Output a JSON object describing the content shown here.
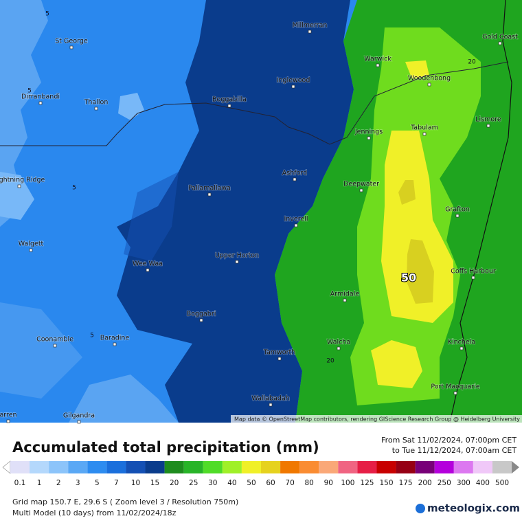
{
  "map": {
    "towns": [
      "Millmerran",
      "St George",
      "Gold Coast",
      "Warwick",
      "Woodenbong",
      "Inglewood",
      "Dirranbandi",
      "Thallon",
      "Boggabilla",
      "Lismore",
      "Jennings",
      "Tabulam",
      "Lightning Ridge",
      "Ashford",
      "Deepwater",
      "Pallamallawa",
      "Grafton",
      "Inverell",
      "Walgett",
      "Upper Horton",
      "Wee Waa",
      "Coffs Harbour",
      "Armidale",
      "Boggabri",
      "Coonamble",
      "Baradine",
      "Walcha",
      "Kinchela",
      "Tamworth",
      "Port Macquarie",
      "Wallabadah",
      "Gilgandra",
      "arren"
    ],
    "contour_labels": [
      "5",
      "5",
      "5",
      "5",
      "20",
      "20",
      "50"
    ],
    "attribution": "Map data © OpenStreetMap contributors, rendering GIScience Research Group @ Heidelberg University"
  },
  "legend": {
    "title": "Accumulated total precipitation (mm)",
    "from": "From Sat 11/02/2024, 07:00pm CET",
    "to": "to Tue 11/12/2024, 07:00am CET",
    "steps": [
      {
        "value": 0.1,
        "color": "#e0e0f8"
      },
      {
        "value": 1,
        "color": "#b4d8fc"
      },
      {
        "value": 2,
        "color": "#8cc4fa"
      },
      {
        "value": 3,
        "color": "#5aa8f5"
      },
      {
        "value": 5,
        "color": "#2d8cf0"
      },
      {
        "value": 7,
        "color": "#1a6fdc"
      },
      {
        "value": 10,
        "color": "#1450b4"
      },
      {
        "value": 15,
        "color": "#0a3c8c"
      },
      {
        "value": 20,
        "color": "#1e8c1e"
      },
      {
        "value": 25,
        "color": "#28b428"
      },
      {
        "value": 30,
        "color": "#50dc28"
      },
      {
        "value": 40,
        "color": "#a0f028"
      },
      {
        "value": 50,
        "color": "#f0f028"
      },
      {
        "value": 60,
        "color": "#e6d21e"
      },
      {
        "value": 70,
        "color": "#f07800"
      },
      {
        "value": 80,
        "color": "#fa8c32"
      },
      {
        "value": 90,
        "color": "#faa878"
      },
      {
        "value": 100,
        "color": "#f06482"
      },
      {
        "value": 125,
        "color": "#e61e46"
      },
      {
        "value": 150,
        "color": "#c80000"
      },
      {
        "value": 175,
        "color": "#960014"
      },
      {
        "value": 200,
        "color": "#780078"
      },
      {
        "value": 250,
        "color": "#b400dc"
      },
      {
        "value": 300,
        "color": "#dc78f0"
      },
      {
        "value": 400,
        "color": "#f0c8f8"
      },
      {
        "value": 500,
        "color": "#c8c8c8"
      }
    ]
  },
  "footer": {
    "grid": "Grid map 150.7 E, 29.6 S ( Zoom level 3 / Resolution 750m)",
    "model": "Multi Model (10 days) from 11/02/2024/18z",
    "brand": "meteologix.com"
  }
}
